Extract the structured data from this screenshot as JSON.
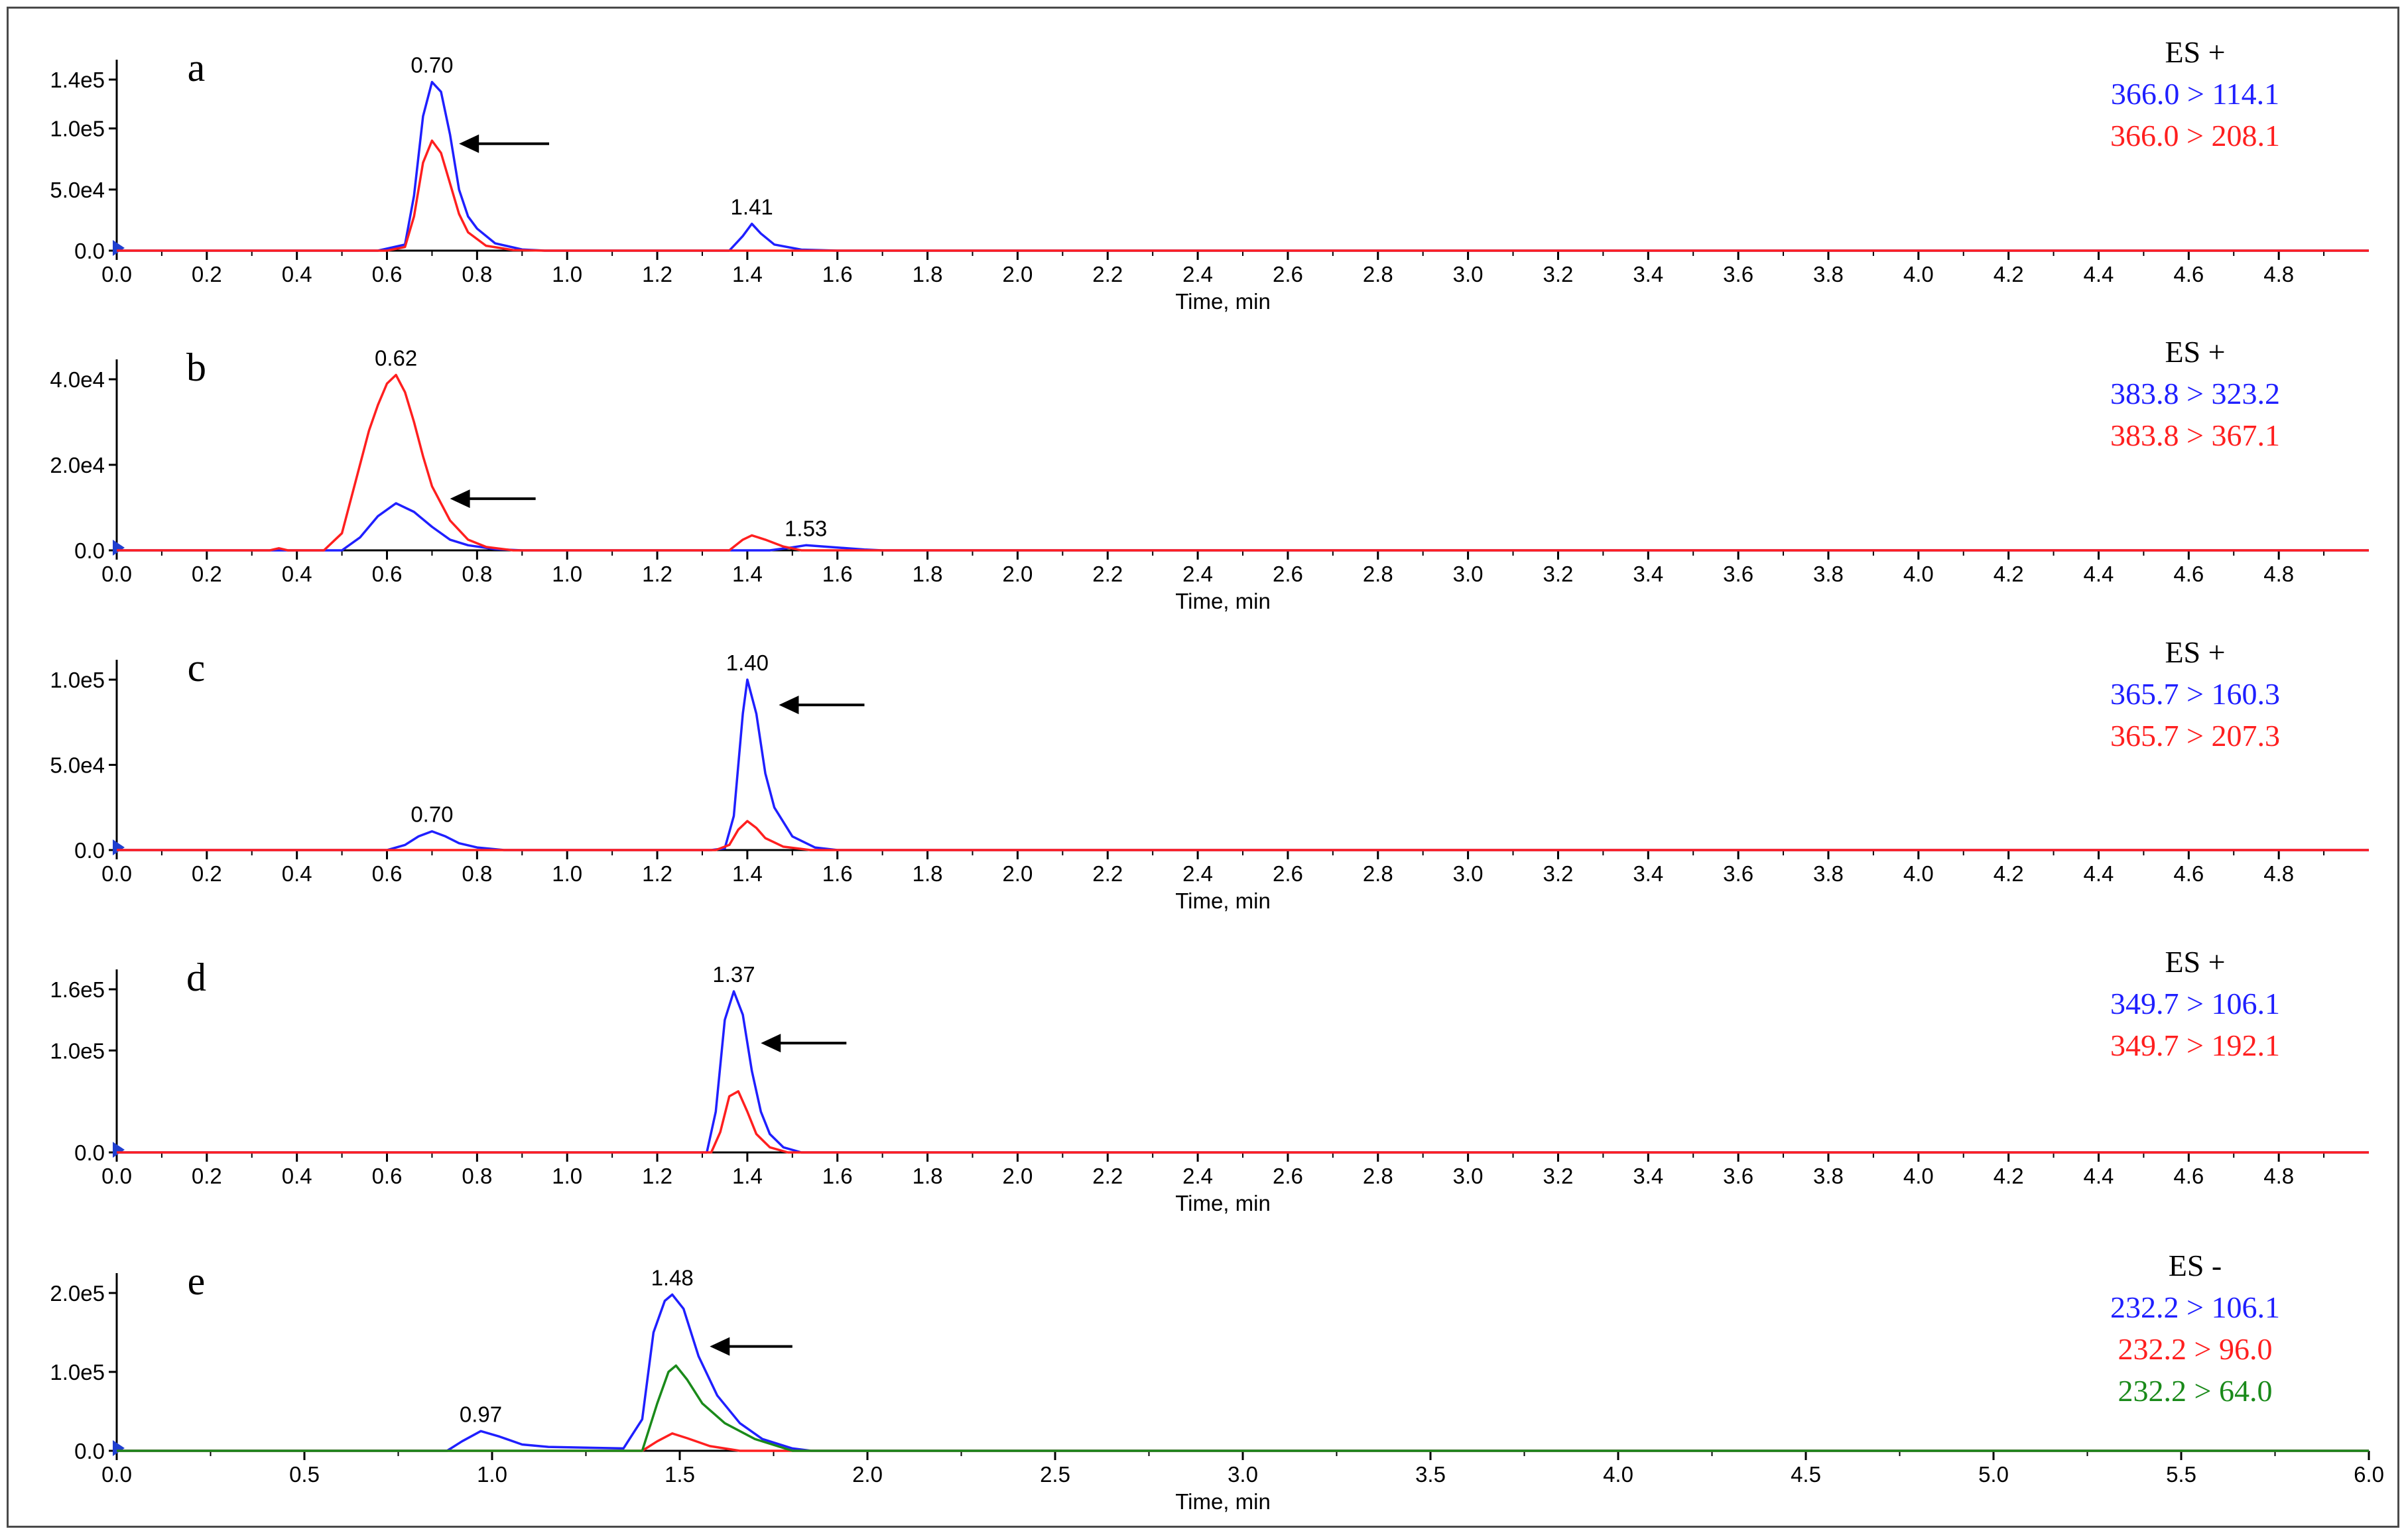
{
  "colors": {
    "blue": "#1f1fff",
    "red": "#ff1f1f",
    "green": "#1a8a1a",
    "axis": "#000000",
    "marker": "#1f3fd0"
  },
  "chart_data": [
    {
      "type": "line",
      "letter": "a",
      "xlabel": "Time, min",
      "xlim": [
        0,
        5.0
      ],
      "x_ticks": [
        "0.0",
        "0.2",
        "0.4",
        "0.6",
        "0.8",
        "1.0",
        "1.2",
        "1.4",
        "1.6",
        "1.8",
        "2.0",
        "2.2",
        "2.4",
        "2.6",
        "2.8",
        "3.0",
        "3.2",
        "3.4",
        "3.6",
        "3.8",
        "4.0",
        "4.2",
        "4.4",
        "4.6",
        "4.8"
      ],
      "ylim": [
        0,
        150000
      ],
      "y_ticks": [
        {
          "v": 0,
          "label": "0.0"
        },
        {
          "v": 50000,
          "label": "5.0e4"
        },
        {
          "v": 100000,
          "label": "1.0e5"
        },
        {
          "v": 140000,
          "label": "1.4e5"
        }
      ],
      "legend": {
        "mode": "ES +",
        "items": [
          {
            "label": "366.0 > 114.1",
            "color": "blue"
          },
          {
            "label": "366.0 > 208.1",
            "color": "red"
          }
        ]
      },
      "series": [
        {
          "name": "366.0 > 114.1",
          "color": "blue",
          "x": [
            0.0,
            0.58,
            0.64,
            0.66,
            0.68,
            0.7,
            0.72,
            0.74,
            0.76,
            0.78,
            0.8,
            0.84,
            0.9,
            0.95,
            1.3,
            1.36,
            1.39,
            1.41,
            1.43,
            1.46,
            1.52,
            1.6,
            5.0
          ],
          "y": [
            0,
            0,
            5000,
            45000,
            110000,
            138000,
            130000,
            95000,
            50000,
            28000,
            18000,
            6000,
            1000,
            0,
            0,
            0,
            12000,
            22000,
            14000,
            5000,
            800,
            0,
            0
          ]
        },
        {
          "name": "366.0 > 208.1",
          "color": "red",
          "x": [
            0.0,
            0.6,
            0.64,
            0.66,
            0.68,
            0.7,
            0.72,
            0.74,
            0.76,
            0.78,
            0.82,
            0.88,
            0.95,
            5.0
          ],
          "y": [
            0,
            0,
            3000,
            28000,
            72000,
            90000,
            80000,
            55000,
            30000,
            15000,
            4000,
            500,
            0,
            0
          ]
        }
      ],
      "peaks": [
        {
          "x": 0.7,
          "label": "0.70"
        },
        {
          "x": 1.41,
          "label": "1.41"
        }
      ],
      "arrow": {
        "x_from": 0.96,
        "x_to": 0.76,
        "y": 0.58
      }
    },
    {
      "type": "line",
      "letter": "b",
      "xlabel": "Time, min",
      "xlim": [
        0,
        5.0
      ],
      "x_ticks": [
        "0.0",
        "0.2",
        "0.4",
        "0.6",
        "0.8",
        "1.0",
        "1.2",
        "1.4",
        "1.6",
        "1.8",
        "2.0",
        "2.2",
        "2.4",
        "2.6",
        "2.8",
        "3.0",
        "3.2",
        "3.4",
        "3.6",
        "3.8",
        "4.0",
        "4.2",
        "4.4",
        "4.6",
        "4.8"
      ],
      "ylim": [
        0,
        45000
      ],
      "y_ticks": [
        {
          "v": 0,
          "label": "0.0"
        },
        {
          "v": 20000,
          "label": "2.0e4"
        },
        {
          "v": 40000,
          "label": "4.0e4"
        }
      ],
      "legend": {
        "mode": "ES +",
        "items": [
          {
            "label": "383.8 > 323.2",
            "color": "blue"
          },
          {
            "label": "383.8 > 367.1",
            "color": "red"
          }
        ]
      },
      "series": [
        {
          "name": "383.8 > 323.2",
          "color": "blue",
          "x": [
            0.0,
            0.5,
            0.54,
            0.58,
            0.62,
            0.66,
            0.7,
            0.74,
            0.78,
            0.84,
            0.9,
            1.45,
            1.5,
            1.53,
            1.58,
            1.66,
            1.7,
            5.0
          ],
          "y": [
            0,
            0,
            3000,
            8000,
            11000,
            9000,
            5500,
            2500,
            1200,
            300,
            0,
            0,
            700,
            1200,
            800,
            200,
            0,
            0
          ]
        },
        {
          "name": "383.8 > 367.1",
          "color": "red",
          "x": [
            0.0,
            0.34,
            0.36,
            0.38,
            0.46,
            0.5,
            0.54,
            0.56,
            0.58,
            0.6,
            0.62,
            0.64,
            0.66,
            0.68,
            0.7,
            0.74,
            0.78,
            0.82,
            0.88,
            1.36,
            1.39,
            1.41,
            1.44,
            1.48,
            1.52,
            5.0
          ],
          "y": [
            0,
            0,
            500,
            0,
            0,
            4000,
            20000,
            28000,
            34000,
            39000,
            41000,
            37000,
            30000,
            22000,
            15000,
            7000,
            2500,
            800,
            0,
            0,
            2500,
            3500,
            2500,
            900,
            0,
            0
          ]
        }
      ],
      "peaks": [
        {
          "x": 0.62,
          "label": "0.62"
        },
        {
          "x": 1.53,
          "label": "1.53"
        }
      ],
      "arrow": {
        "x_from": 0.93,
        "x_to": 0.74,
        "y": 0.28
      }
    },
    {
      "type": "line",
      "letter": "c",
      "xlabel": "Time, min",
      "xlim": [
        0,
        5.0
      ],
      "x_ticks": [
        "0.0",
        "0.2",
        "0.4",
        "0.6",
        "0.8",
        "1.0",
        "1.2",
        "1.4",
        "1.6",
        "1.8",
        "2.0",
        "2.2",
        "2.4",
        "2.6",
        "2.8",
        "3.0",
        "3.2",
        "3.4",
        "3.6",
        "3.8",
        "4.0",
        "4.2",
        "4.4",
        "4.6",
        "4.8"
      ],
      "ylim": [
        0,
        110000
      ],
      "y_ticks": [
        {
          "v": 0,
          "label": "0.0"
        },
        {
          "v": 50000,
          "label": "5.0e4"
        },
        {
          "v": 100000,
          "label": "1.0e5"
        }
      ],
      "legend": {
        "mode": "ES +",
        "items": [
          {
            "label": "365.7 > 160.3",
            "color": "blue"
          },
          {
            "label": "365.7 > 207.3",
            "color": "red"
          }
        ]
      },
      "series": [
        {
          "name": "365.7 > 160.3",
          "color": "blue",
          "x": [
            0.0,
            0.6,
            0.64,
            0.67,
            0.7,
            0.73,
            0.76,
            0.8,
            0.86,
            1.28,
            1.32,
            1.35,
            1.37,
            1.39,
            1.4,
            1.42,
            1.44,
            1.46,
            1.5,
            1.55,
            1.6,
            5.0
          ],
          "y": [
            0,
            0,
            3000,
            8000,
            11000,
            8000,
            4000,
            1500,
            0,
            0,
            0,
            1000,
            20000,
            80000,
            100000,
            80000,
            45000,
            25000,
            8000,
            1500,
            0,
            0
          ]
        },
        {
          "name": "365.7 > 207.3",
          "color": "red",
          "x": [
            0.0,
            1.33,
            1.36,
            1.38,
            1.4,
            1.42,
            1.44,
            1.48,
            1.54,
            5.0
          ],
          "y": [
            0,
            0,
            3000,
            12000,
            17000,
            13000,
            7000,
            2000,
            0,
            0
          ]
        }
      ],
      "peaks": [
        {
          "x": 0.7,
          "label": "0.70"
        },
        {
          "x": 1.4,
          "label": "1.40"
        }
      ],
      "arrow": {
        "x_from": 1.66,
        "x_to": 1.47,
        "y": 0.79
      }
    },
    {
      "type": "line",
      "letter": "d",
      "xlabel": "Time, min",
      "xlim": [
        0,
        5.0
      ],
      "x_ticks": [
        "0.0",
        "0.2",
        "0.4",
        "0.6",
        "0.8",
        "1.0",
        "1.2",
        "1.4",
        "1.6",
        "1.8",
        "2.0",
        "2.2",
        "2.4",
        "2.6",
        "2.8",
        "3.0",
        "3.2",
        "3.4",
        "3.6",
        "3.8",
        "4.0",
        "4.2",
        "4.4",
        "4.6",
        "4.8"
      ],
      "ylim": [
        0,
        170000
      ],
      "y_ticks": [
        {
          "v": 0,
          "label": "0.0"
        },
        {
          "v": 100000,
          "label": "1.0e5"
        },
        {
          "v": 160000,
          "label": "1.6e5"
        }
      ],
      "legend": {
        "mode": "ES +",
        "items": [
          {
            "label": "349.7 > 106.1",
            "color": "blue"
          },
          {
            "label": "349.7 > 192.1",
            "color": "red"
          }
        ]
      },
      "series": [
        {
          "name": "349.7 > 106.1",
          "color": "blue",
          "x": [
            0.0,
            1.31,
            1.33,
            1.35,
            1.37,
            1.39,
            1.41,
            1.43,
            1.45,
            1.48,
            1.52,
            5.0
          ],
          "y": [
            0,
            0,
            40000,
            130000,
            158000,
            135000,
            80000,
            40000,
            18000,
            5000,
            0,
            0
          ]
        },
        {
          "name": "349.7 > 192.1",
          "color": "red",
          "x": [
            0.0,
            1.32,
            1.34,
            1.36,
            1.38,
            1.4,
            1.42,
            1.45,
            1.49,
            5.0
          ],
          "y": [
            0,
            0,
            20000,
            55000,
            60000,
            40000,
            18000,
            5000,
            0,
            0
          ]
        }
      ],
      "peaks": [
        {
          "x": 1.37,
          "label": "1.37"
        }
      ],
      "arrow": {
        "x_from": 1.62,
        "x_to": 1.43,
        "y": 0.62
      }
    },
    {
      "type": "line",
      "letter": "e",
      "xlabel": "Time, min",
      "xlim": [
        0,
        6.0
      ],
      "x_ticks": [
        "0.0",
        "0.5",
        "1.0",
        "1.5",
        "2.0",
        "2.5",
        "3.0",
        "3.5",
        "4.0",
        "4.5",
        "5.0",
        "5.5",
        "6.0"
      ],
      "ylim": [
        0,
        210000
      ],
      "y_ticks": [
        {
          "v": 0,
          "label": "0.0"
        },
        {
          "v": 100000,
          "label": "1.0e5"
        },
        {
          "v": 200000,
          "label": "2.0e5"
        }
      ],
      "legend": {
        "mode": "ES -",
        "items": [
          {
            "label": "232.2 > 106.1",
            "color": "blue"
          },
          {
            "label": "232.2 > 96.0",
            "color": "red"
          },
          {
            "label": "232.2 > 64.0",
            "color": "green"
          }
        ]
      },
      "series": [
        {
          "name": "232.2 > 106.1",
          "color": "blue",
          "x": [
            0.0,
            0.88,
            0.92,
            0.97,
            1.02,
            1.08,
            1.15,
            1.25,
            1.35,
            1.4,
            1.43,
            1.46,
            1.48,
            1.51,
            1.55,
            1.6,
            1.66,
            1.72,
            1.8,
            1.85,
            6.0
          ],
          "y": [
            0,
            0,
            12000,
            25000,
            18000,
            8000,
            5000,
            4000,
            3000,
            40000,
            150000,
            190000,
            198000,
            180000,
            120000,
            70000,
            35000,
            15000,
            3000,
            0,
            0
          ]
        },
        {
          "name": "232.2 > 96.0",
          "color": "red",
          "x": [
            0.0,
            1.4,
            1.44,
            1.48,
            1.52,
            1.58,
            1.66,
            6.0
          ],
          "y": [
            0,
            0,
            12000,
            22000,
            16000,
            6000,
            0,
            0
          ]
        },
        {
          "name": "232.2 > 64.0",
          "color": "green",
          "x": [
            0.0,
            1.4,
            1.44,
            1.47,
            1.49,
            1.52,
            1.56,
            1.62,
            1.7,
            1.8,
            6.0
          ],
          "y": [
            0,
            0,
            60000,
            100000,
            108000,
            90000,
            60000,
            35000,
            15000,
            0,
            0
          ]
        }
      ],
      "peaks": [
        {
          "x": 0.97,
          "label": "0.97"
        },
        {
          "x": 1.48,
          "label": "1.48"
        }
      ],
      "arrow": {
        "x_from": 1.8,
        "x_to": 1.58,
        "y": 0.61
      }
    }
  ]
}
